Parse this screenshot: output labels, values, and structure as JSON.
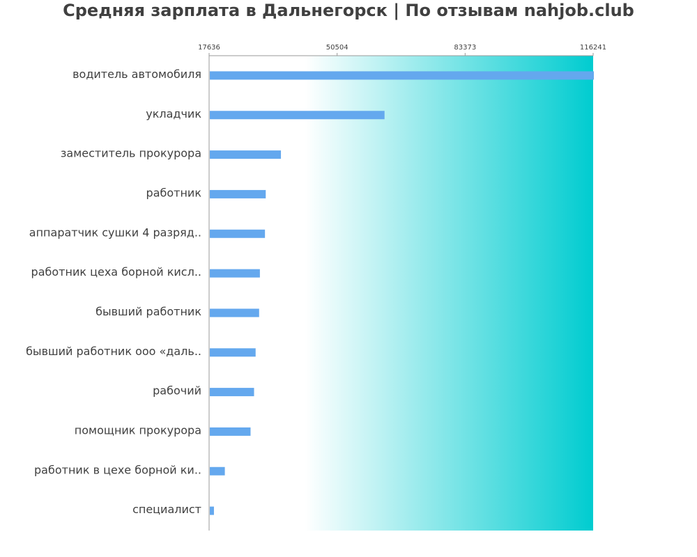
{
  "chart_data": {
    "type": "bar",
    "orientation": "horizontal",
    "title": "Средняя зарплата в Дальнегорск | По отзывам nahjob.club",
    "xlabel": "",
    "ylabel": "",
    "xlim": [
      17636,
      116241
    ],
    "xticks": [
      "17636",
      "50504",
      "83373",
      "116241"
    ],
    "grid": false,
    "legend": "none",
    "bar_color": "#64a8ee",
    "gradient_start": "#ffffff",
    "gradient_end": "#00ccd0",
    "categories": [
      "водитель автомобиля",
      "укладчик",
      "заместитель прокурора",
      "работник",
      "аппаратчик сушки 4 разряд..",
      "работник цеха борной кисл..",
      "бывший работник",
      "бывший работник ооо «даль..",
      "рабочий",
      "помощник прокурора",
      "работник в цехе борной ки..",
      "специалист"
    ],
    "values": [
      116241,
      62500,
      35900,
      32000,
      31800,
      30500,
      30300,
      29400,
      29000,
      28100,
      21500,
      18700
    ]
  }
}
